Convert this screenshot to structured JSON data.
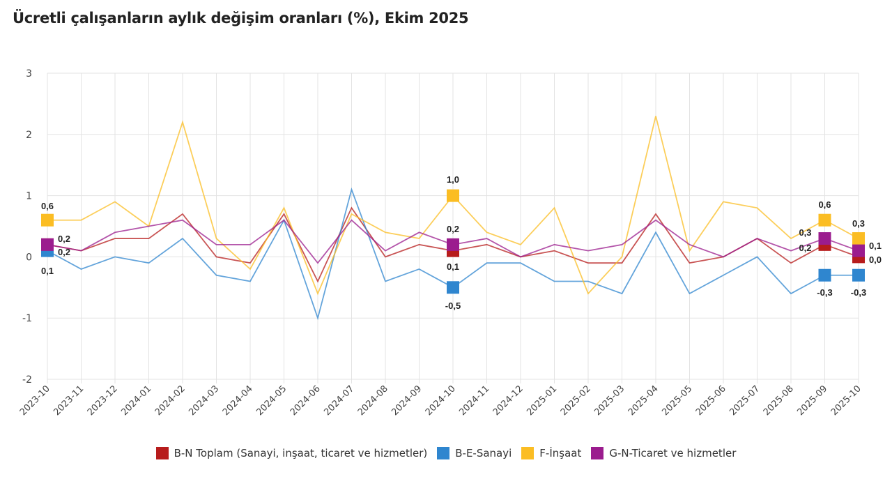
{
  "chart_data": {
    "type": "line",
    "title": "Ücretli çalışanların aylık değişim oranları (%), Ekim 2025",
    "xlabel": "",
    "ylabel": "",
    "ylim": [
      -2,
      3
    ],
    "yticks": [
      "-2",
      "-1",
      "0",
      "1",
      "2",
      "3"
    ],
    "grid": true,
    "legend_position": "bottom",
    "categories": [
      "2023-10",
      "2023-11",
      "2023-12",
      "2024-01",
      "2024-02",
      "2024-03",
      "2024-04",
      "2024-05",
      "2024-06",
      "2024-07",
      "2024-08",
      "2024-09",
      "2024-10",
      "2024-11",
      "2024-12",
      "2025-01",
      "2025-02",
      "2025-03",
      "2025-04",
      "2025-05",
      "2025-06",
      "2025-07",
      "2025-08",
      "2025-09",
      "2025-10"
    ],
    "labeled_points": [
      0,
      12,
      23,
      24
    ],
    "series": [
      {
        "name": "B-N Toplam (Sanayi, inşaat, ticaret ve hizmetler)",
        "color": "#b71c1c",
        "values": [
          0.2,
          0.1,
          0.3,
          0.3,
          0.7,
          0.0,
          -0.1,
          0.7,
          -0.4,
          0.8,
          0.0,
          0.2,
          0.1,
          0.2,
          0.0,
          0.1,
          -0.1,
          -0.1,
          0.7,
          -0.1,
          0.0,
          0.3,
          -0.1,
          0.2,
          0.0
        ]
      },
      {
        "name": "B-E-Sanayi",
        "color": "#2f86cf",
        "values": [
          0.1,
          -0.2,
          0.0,
          -0.1,
          0.3,
          -0.3,
          -0.4,
          0.6,
          -1.0,
          1.1,
          -0.4,
          -0.2,
          -0.5,
          -0.1,
          -0.1,
          -0.4,
          -0.4,
          -0.6,
          0.4,
          -0.6,
          -0.3,
          0.0,
          -0.6,
          -0.3,
          -0.3
        ]
      },
      {
        "name": "F-İnşaat",
        "color": "#fbbd23",
        "values": [
          0.6,
          0.6,
          0.9,
          0.5,
          2.2,
          0.3,
          -0.2,
          0.8,
          -0.6,
          0.7,
          0.4,
          0.3,
          1.0,
          0.4,
          0.2,
          0.8,
          -0.6,
          0.0,
          2.3,
          0.1,
          0.9,
          0.8,
          0.3,
          0.6,
          0.3
        ]
      },
      {
        "name": "G-N-Ticaret ve hizmetler",
        "color": "#9b1c8e",
        "values": [
          0.2,
          0.1,
          0.4,
          0.5,
          0.6,
          0.2,
          0.2,
          0.6,
          -0.1,
          0.6,
          0.1,
          0.4,
          0.2,
          0.3,
          0.0,
          0.2,
          0.1,
          0.2,
          0.6,
          0.2,
          0.0,
          0.3,
          0.1,
          0.3,
          0.1
        ]
      }
    ]
  }
}
